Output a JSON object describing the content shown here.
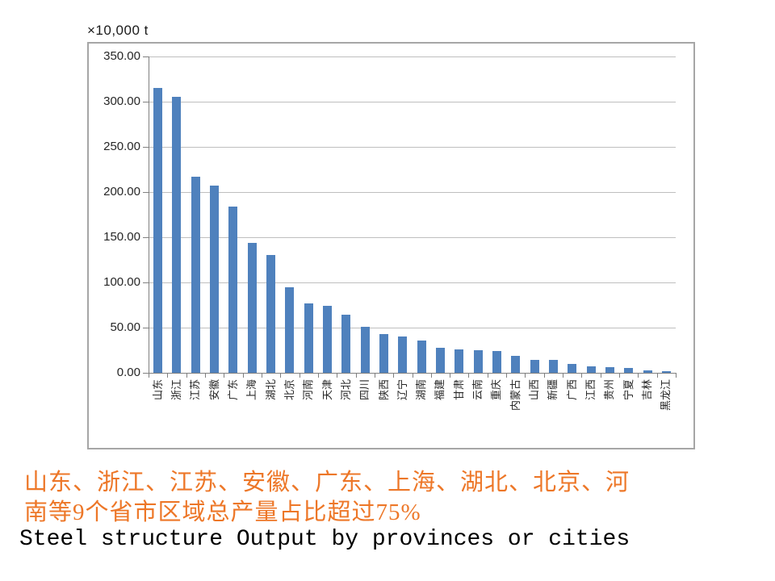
{
  "chart_data": {
    "type": "bar",
    "title": "",
    "unit_label": "×10,000 t",
    "xlabel": "",
    "ylabel": "×10,000 t",
    "categories": [
      "山东",
      "浙江",
      "江苏",
      "安徽",
      "广东",
      "上海",
      "湖北",
      "北京",
      "河南",
      "天津",
      "河北",
      "四川",
      "陕西",
      "辽宁",
      "湖南",
      "福建",
      "甘肃",
      "云南",
      "重庆",
      "内蒙古",
      "山西",
      "新疆",
      "广西",
      "江西",
      "贵州",
      "宁夏",
      "吉林",
      "黑龙江"
    ],
    "values": [
      315,
      305,
      217,
      207,
      184,
      144,
      130,
      95,
      77,
      74,
      64,
      51,
      43,
      40,
      36,
      28,
      26,
      25,
      24,
      19,
      14,
      14,
      10,
      7,
      6,
      5,
      3,
      2
    ],
    "ylim": [
      0,
      350
    ],
    "ytick_step": 50,
    "ytick_labels_top_to_bottom": [
      "350.00",
      "300.00",
      "250.00",
      "200.00",
      "150.00",
      "100.00",
      "50.00",
      "0.00"
    ],
    "grid": true,
    "legend_position": "none",
    "bar_color": "#4F81BD",
    "gridline_color": "#BFBFBF",
    "axis_color": "#808080",
    "frame_border_color": "#A6A6A6"
  },
  "captions": {
    "cn_lines": [
      "山东、浙江、江苏、安徽、广东、上海、湖北、北京、河",
      "南等9个省市区域总产量占比超过75%"
    ],
    "cn_color": "#ED7728",
    "en": "Steel structure Output by provinces or cities"
  }
}
